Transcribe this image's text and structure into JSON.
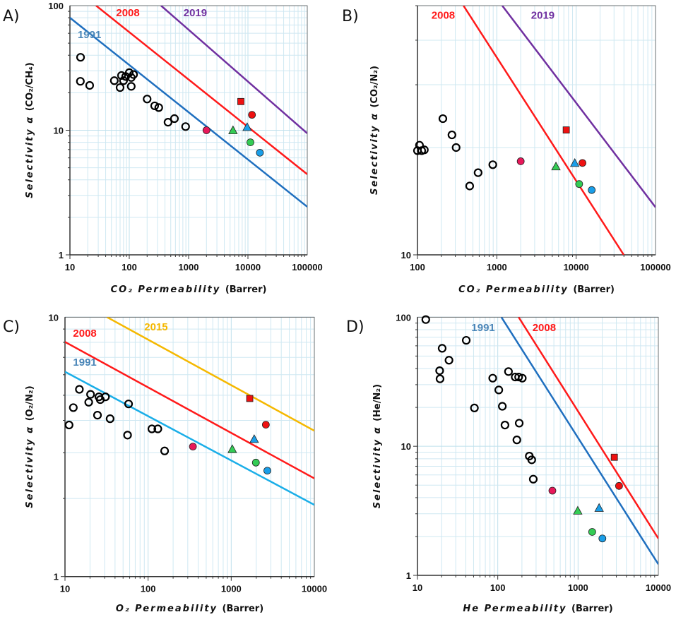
{
  "colors": {
    "line_1991_blue": "#1f6fbf",
    "line_1991_cyan": "#1aaee8",
    "line_2008": "#ff1a1a",
    "line_2019": "#7030a0",
    "line_2015": "#f5b800",
    "label_1991": "#4a86b8",
    "label_2015": "#f5b800",
    "pink": "#e8185a",
    "green": "#33cc55",
    "blue": "#1a9ee8",
    "red": "#ee1111",
    "grid": "#bfe0ec"
  },
  "chart_data": [
    {
      "panel": "A)",
      "type": "scatter",
      "xlabel_italic": "CO₂ Permeability",
      "xlabel_unit": "(Barrer)",
      "ylabel_italic": "Selectivity α",
      "ylabel_ratio": "(CO₂/CH₄)",
      "xscale": "log",
      "yscale": "log",
      "xlim": [
        10,
        100000
      ],
      "ylim": [
        1,
        100
      ],
      "xticks": [
        "10",
        "100",
        "1000",
        "10000",
        "100000"
      ],
      "yticks": [
        "1",
        "10",
        "100"
      ],
      "grid": true,
      "upper_bounds": [
        {
          "name": "1991",
          "color_key": "line_1991_blue",
          "label_color_key": "label_1991",
          "points": [
            [
              10,
              80
            ],
            [
              100000,
              2.43
            ]
          ],
          "label_at": [
            13.5,
            55
          ]
        },
        {
          "name": "2008",
          "color_key": "line_2008",
          "label_color_key": "line_2008",
          "points": [
            [
              27.6,
              100
            ],
            [
              100000,
              4.43
            ]
          ],
          "label_at": [
            60,
            82
          ]
        },
        {
          "name": "2019",
          "color_key": "line_2019",
          "label_color_key": "line_2019",
          "points": [
            [
              343,
              100
            ],
            [
              100000,
              9.44
            ]
          ],
          "label_at": [
            820,
            82
          ]
        }
      ],
      "literature_points": [
        [
          15.1,
          38.5
        ],
        [
          15,
          24.7
        ],
        [
          21.5,
          22.9
        ],
        [
          56,
          25
        ],
        [
          70,
          22
        ],
        [
          74,
          27.5
        ],
        [
          80,
          25
        ],
        [
          87,
          27
        ],
        [
          100,
          29
        ],
        [
          108,
          26.5
        ],
        [
          118,
          28
        ],
        [
          108,
          22.5
        ],
        [
          200,
          17.8
        ],
        [
          268,
          15.7
        ],
        [
          314,
          15.2
        ],
        [
          450,
          11.6
        ],
        [
          577,
          12.4
        ],
        [
          890,
          10.7
        ]
      ],
      "highlighted_points": [
        {
          "shape": "circle",
          "color_key": "pink",
          "x": 2000,
          "y": 10
        },
        {
          "shape": "triangle",
          "color_key": "green",
          "x": 5600,
          "y": 10
        },
        {
          "shape": "triangle",
          "color_key": "blue",
          "x": 9700,
          "y": 10.6
        },
        {
          "shape": "square",
          "color_key": "red",
          "x": 7600,
          "y": 17
        },
        {
          "shape": "circle",
          "color_key": "red",
          "x": 11700,
          "y": 13.3
        },
        {
          "shape": "circle",
          "color_key": "green",
          "x": 11000,
          "y": 8
        },
        {
          "shape": "circle",
          "color_key": "blue",
          "x": 15900,
          "y": 6.6
        }
      ]
    },
    {
      "panel": "B)",
      "type": "scatter",
      "xlabel_italic": "CO₂ Permeability",
      "xlabel_unit": "(Barrer)",
      "ylabel_italic": "Selectivity α",
      "ylabel_ratio": "(CO₂/N₂)",
      "xscale": "log",
      "yscale": "log",
      "xlim": [
        100,
        100000
      ],
      "ylim": [
        10,
        50
      ],
      "xticks": [
        "100",
        "1000",
        "10000",
        "100000"
      ],
      "yticks": [
        "10"
      ],
      "grid": true,
      "upper_bounds": [
        {
          "name": "2008",
          "color_key": "line_2008",
          "label_color_key": "line_2008",
          "points": [
            [
              380,
              50
            ],
            [
              39800,
              10
            ]
          ],
          "label_at": [
            150,
            46
          ]
        },
        {
          "name": "2019",
          "color_key": "line_2019",
          "label_color_key": "line_2019",
          "points": [
            [
              1170,
              50
            ],
            [
              100000,
              13.6
            ]
          ],
          "label_at": [
            2700,
            46
          ]
        }
      ],
      "literature_points": [
        [
          100,
          19.6
        ],
        [
          106,
          20.3
        ],
        [
          113,
          19.6
        ],
        [
          122,
          19.7
        ],
        [
          209,
          24.1
        ],
        [
          272,
          21.7
        ],
        [
          307,
          20
        ],
        [
          455,
          15.6
        ],
        [
          581,
          17
        ],
        [
          890,
          17.9
        ]
      ],
      "highlighted_points": [
        {
          "shape": "circle",
          "color_key": "pink",
          "x": 2000,
          "y": 18.3
        },
        {
          "shape": "triangle",
          "color_key": "green",
          "x": 5560,
          "y": 17.7
        },
        {
          "shape": "triangle",
          "color_key": "blue",
          "x": 9600,
          "y": 18.1
        },
        {
          "shape": "circle",
          "color_key": "red",
          "x": 12000,
          "y": 18.1
        },
        {
          "shape": "square",
          "color_key": "red",
          "x": 7500,
          "y": 22.4
        },
        {
          "shape": "circle",
          "color_key": "green",
          "x": 10900,
          "y": 15.8
        },
        {
          "shape": "circle",
          "color_key": "blue",
          "x": 15700,
          "y": 15.2
        }
      ]
    },
    {
      "panel": "C)",
      "type": "scatter",
      "xlabel_italic": "O₂ Permeability",
      "xlabel_unit": "(Barrer)",
      "ylabel_italic": "Selectivity α",
      "ylabel_ratio": "(O₂/N₂)",
      "xscale": "log",
      "yscale": "log",
      "xlim": [
        10,
        10000
      ],
      "ylim": [
        1,
        10
      ],
      "xticks": [
        "10",
        "100",
        "1000",
        "10000"
      ],
      "yticks": [
        "1",
        "10"
      ],
      "grid": true,
      "upper_bounds": [
        {
          "name": "1991",
          "color_key": "line_1991_cyan",
          "label_color_key": "label_1991",
          "points": [
            [
              10,
              6.16
            ],
            [
              10000,
              1.89
            ]
          ],
          "label_at": [
            12.5,
            6.5
          ]
        },
        {
          "name": "2008",
          "color_key": "line_2008",
          "label_color_key": "line_2008",
          "points": [
            [
              10,
              8.03
            ],
            [
              10000,
              2.39
            ]
          ],
          "label_at": [
            12.5,
            8.4
          ]
        },
        {
          "name": "2015",
          "color_key": "line_2015",
          "label_color_key": "label_2015",
          "points": [
            [
              32.1,
              10
            ],
            [
              10000,
              3.65
            ]
          ],
          "label_at": [
            90,
            8.9
          ]
        }
      ],
      "literature_points": [
        [
          11.2,
          3.84
        ],
        [
          12.6,
          4.48
        ],
        [
          14.9,
          5.27
        ],
        [
          19.3,
          4.7
        ],
        [
          20.3,
          5.04
        ],
        [
          24.6,
          4.19
        ],
        [
          25.6,
          4.93
        ],
        [
          26.6,
          4.81
        ],
        [
          30.7,
          4.93
        ],
        [
          34.9,
          4.06
        ],
        [
          58.2,
          4.63
        ],
        [
          56.6,
          3.51
        ],
        [
          111,
          3.71
        ],
        [
          131,
          3.71
        ],
        [
          158,
          3.05
        ]
      ],
      "highlighted_points": [
        {
          "shape": "circle",
          "color_key": "pink",
          "x": 346,
          "y": 3.17
        },
        {
          "shape": "triangle",
          "color_key": "green",
          "x": 1030,
          "y": 3.1
        },
        {
          "shape": "triangle",
          "color_key": "blue",
          "x": 1890,
          "y": 3.39
        },
        {
          "shape": "square",
          "color_key": "red",
          "x": 1670,
          "y": 4.86
        },
        {
          "shape": "circle",
          "color_key": "red",
          "x": 2610,
          "y": 3.85
        },
        {
          "shape": "circle",
          "color_key": "green",
          "x": 1980,
          "y": 2.75
        },
        {
          "shape": "circle",
          "color_key": "blue",
          "x": 2720,
          "y": 2.56
        }
      ]
    },
    {
      "panel": "D)",
      "type": "scatter",
      "xlabel_italic": "He Permeability",
      "xlabel_unit": "(Barrer)",
      "ylabel_italic": "Selectivity α",
      "ylabel_ratio": "(He/N₂)",
      "xscale": "log",
      "yscale": "log",
      "xlim": [
        10,
        10000
      ],
      "ylim": [
        1,
        100
      ],
      "xticks": [
        "10",
        "100",
        "1000",
        "10000"
      ],
      "yticks": [
        "1",
        "10",
        "100"
      ],
      "grid": true,
      "upper_bounds": [
        {
          "name": "1991",
          "color_key": "line_1991_blue",
          "label_color_key": "label_1991",
          "points": [
            [
              111,
              100
            ],
            [
              10000,
              1.22
            ]
          ],
          "label_at": [
            47,
            78
          ]
        },
        {
          "name": "2008",
          "color_key": "line_2008",
          "label_color_key": "line_2008",
          "points": [
            [
              182,
              100
            ],
            [
              10000,
              1.93
            ]
          ],
          "label_at": [
            270,
            78
          ]
        }
      ],
      "literature_points": [
        [
          12.7,
          95.8
        ],
        [
          20.3,
          57.4
        ],
        [
          18.9,
          38.5
        ],
        [
          19.1,
          33.3
        ],
        [
          24.7,
          46.4
        ],
        [
          40.5,
          66.2
        ],
        [
          51.2,
          19.8
        ],
        [
          86.6,
          33.7
        ],
        [
          103,
          27.3
        ],
        [
          114,
          20.4
        ],
        [
          123,
          14.6
        ],
        [
          136,
          37.9
        ],
        [
          165,
          34.4
        ],
        [
          182,
          34.4
        ],
        [
          202,
          33.7
        ],
        [
          185,
          15.1
        ],
        [
          173,
          11.2
        ],
        [
          247,
          8.39
        ],
        [
          265,
          7.85
        ],
        [
          277,
          5.56
        ]
      ],
      "highlighted_points": [
        {
          "shape": "circle",
          "color_key": "pink",
          "x": 479,
          "y": 4.53
        },
        {
          "shape": "triangle",
          "color_key": "green",
          "x": 991,
          "y": 3.17
        },
        {
          "shape": "triangle",
          "color_key": "blue",
          "x": 1830,
          "y": 3.33
        },
        {
          "shape": "square",
          "color_key": "red",
          "x": 2830,
          "y": 8.22
        },
        {
          "shape": "circle",
          "color_key": "red",
          "x": 3240,
          "y": 4.93
        },
        {
          "shape": "circle",
          "color_key": "green",
          "x": 1500,
          "y": 2.17
        },
        {
          "shape": "circle",
          "color_key": "blue",
          "x": 2010,
          "y": 1.93
        }
      ]
    }
  ]
}
